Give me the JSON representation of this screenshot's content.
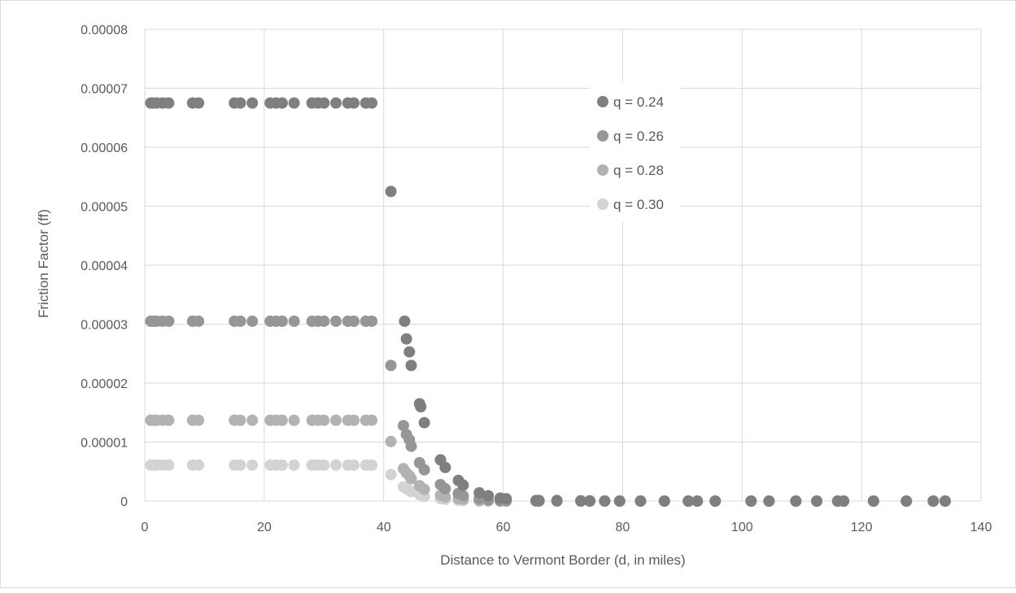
{
  "chart_data": {
    "type": "scatter",
    "xlabel": "Distance to Vermont Border (d, in miles)",
    "ylabel": "Friction Factor (ff)",
    "xlim": [
      0,
      140
    ],
    "ylim": [
      0,
      8e-05
    ],
    "x_ticks": [
      "0",
      "20",
      "40",
      "60",
      "80",
      "100",
      "120",
      "140"
    ],
    "y_ticks": [
      "0",
      "0.00001",
      "0.00002",
      "0.00003",
      "0.00004",
      "0.00005",
      "0.00006",
      "0.00007",
      "0.00008"
    ],
    "grid": true,
    "legend_position": "top-right",
    "series": [
      {
        "name": "q = 0.24",
        "color": "#7f7f7f",
        "points": [
          [
            1,
            6.75e-05
          ],
          [
            1.5,
            6.75e-05
          ],
          [
            2,
            6.75e-05
          ],
          [
            3,
            6.75e-05
          ],
          [
            4,
            6.75e-05
          ],
          [
            8,
            6.75e-05
          ],
          [
            9,
            6.75e-05
          ],
          [
            15,
            6.75e-05
          ],
          [
            16,
            6.75e-05
          ],
          [
            18,
            6.75e-05
          ],
          [
            21,
            6.75e-05
          ],
          [
            22,
            6.75e-05
          ],
          [
            23,
            6.75e-05
          ],
          [
            25,
            6.75e-05
          ],
          [
            28,
            6.75e-05
          ],
          [
            29,
            6.75e-05
          ],
          [
            30,
            6.75e-05
          ],
          [
            32,
            6.75e-05
          ],
          [
            34,
            6.75e-05
          ],
          [
            35,
            6.75e-05
          ],
          [
            37,
            6.75e-05
          ],
          [
            38,
            6.75e-05
          ],
          [
            41.2,
            5.25e-05
          ],
          [
            43.5,
            3.05e-05
          ],
          [
            43.8,
            2.75e-05
          ],
          [
            44.3,
            2.53e-05
          ],
          [
            44.6,
            2.3e-05
          ],
          [
            46,
            1.65e-05
          ],
          [
            46.2,
            1.6e-05
          ],
          [
            46.8,
            1.33e-05
          ],
          [
            49.5,
            7e-06
          ],
          [
            50.3,
            5.7e-06
          ],
          [
            52.5,
            3.5e-06
          ],
          [
            53.3,
            2.7e-06
          ],
          [
            56,
            1.4e-06
          ],
          [
            57.5,
            9e-07
          ],
          [
            59.5,
            5e-07
          ],
          [
            60.5,
            4e-07
          ],
          [
            65.5,
            1e-07
          ],
          [
            66,
            1e-07
          ],
          [
            69,
            1e-07
          ],
          [
            73,
            5e-08
          ],
          [
            74.5,
            3e-08
          ],
          [
            77,
            2e-08
          ],
          [
            79.5,
            1e-08
          ],
          [
            83,
            1e-08
          ],
          [
            87,
            0
          ],
          [
            91,
            0
          ],
          [
            92.5,
            0
          ],
          [
            95.5,
            0
          ],
          [
            101.5,
            0
          ],
          [
            104.5,
            0
          ],
          [
            109,
            0
          ],
          [
            112.5,
            0
          ],
          [
            116,
            0
          ],
          [
            117,
            0
          ],
          [
            122,
            0
          ],
          [
            127.5,
            0
          ],
          [
            132,
            0
          ],
          [
            134,
            0
          ]
        ]
      },
      {
        "name": "q = 0.26",
        "color": "#969696",
        "points": [
          [
            1,
            3.05e-05
          ],
          [
            1.5,
            3.05e-05
          ],
          [
            2,
            3.05e-05
          ],
          [
            3,
            3.05e-05
          ],
          [
            4,
            3.05e-05
          ],
          [
            8,
            3.05e-05
          ],
          [
            9,
            3.05e-05
          ],
          [
            15,
            3.05e-05
          ],
          [
            16,
            3.05e-05
          ],
          [
            18,
            3.05e-05
          ],
          [
            21,
            3.05e-05
          ],
          [
            22,
            3.05e-05
          ],
          [
            23,
            3.05e-05
          ],
          [
            25,
            3.05e-05
          ],
          [
            28,
            3.05e-05
          ],
          [
            29,
            3.05e-05
          ],
          [
            30,
            3.05e-05
          ],
          [
            32,
            3.05e-05
          ],
          [
            34,
            3.05e-05
          ],
          [
            35,
            3.05e-05
          ],
          [
            37,
            3.05e-05
          ],
          [
            38,
            3.05e-05
          ],
          [
            41.2,
            2.3e-05
          ],
          [
            43.3,
            1.28e-05
          ],
          [
            43.8,
            1.13e-05
          ],
          [
            44.3,
            1.04e-05
          ],
          [
            44.6,
            9.3e-06
          ],
          [
            46,
            6.5e-06
          ],
          [
            46.8,
            5.3e-06
          ],
          [
            49.5,
            2.8e-06
          ],
          [
            50.3,
            2.1e-06
          ],
          [
            52.5,
            1.3e-06
          ],
          [
            53.3,
            9e-07
          ],
          [
            56,
            4e-07
          ],
          [
            57.5,
            2e-07
          ],
          [
            59.5,
            1e-07
          ],
          [
            60.5,
            1e-07
          ],
          [
            65.5,
            0
          ],
          [
            66,
            0
          ],
          [
            69,
            0
          ],
          [
            73,
            0
          ],
          [
            74.5,
            0
          ],
          [
            77,
            0
          ],
          [
            79.5,
            0
          ],
          [
            83,
            0
          ],
          [
            87,
            0
          ],
          [
            91,
            0
          ],
          [
            92.5,
            0
          ],
          [
            95.5,
            0
          ],
          [
            101.5,
            0
          ],
          [
            104.5,
            0
          ],
          [
            109,
            0
          ],
          [
            112.5,
            0
          ],
          [
            116,
            0
          ],
          [
            117,
            0
          ],
          [
            122,
            0
          ],
          [
            127.5,
            0
          ],
          [
            132,
            0
          ],
          [
            134,
            0
          ]
        ]
      },
      {
        "name": "q = 0.28",
        "color": "#b2b2b2",
        "points": [
          [
            1,
            1.37e-05
          ],
          [
            1.5,
            1.37e-05
          ],
          [
            2,
            1.37e-05
          ],
          [
            3,
            1.37e-05
          ],
          [
            4,
            1.37e-05
          ],
          [
            8,
            1.37e-05
          ],
          [
            9,
            1.37e-05
          ],
          [
            15,
            1.37e-05
          ],
          [
            16,
            1.37e-05
          ],
          [
            18,
            1.37e-05
          ],
          [
            21,
            1.37e-05
          ],
          [
            22,
            1.37e-05
          ],
          [
            23,
            1.37e-05
          ],
          [
            25,
            1.37e-05
          ],
          [
            28,
            1.37e-05
          ],
          [
            29,
            1.37e-05
          ],
          [
            30,
            1.37e-05
          ],
          [
            32,
            1.37e-05
          ],
          [
            34,
            1.37e-05
          ],
          [
            35,
            1.37e-05
          ],
          [
            37,
            1.37e-05
          ],
          [
            38,
            1.37e-05
          ],
          [
            41.2,
            1.01e-05
          ],
          [
            43.3,
            5.5e-06
          ],
          [
            43.8,
            4.8e-06
          ],
          [
            44.3,
            4.3e-06
          ],
          [
            44.6,
            3.8e-06
          ],
          [
            46,
            2.6e-06
          ],
          [
            46.8,
            2e-06
          ],
          [
            49.5,
            1e-06
          ],
          [
            50.3,
            7e-07
          ],
          [
            52.5,
            4e-07
          ],
          [
            53.3,
            3e-07
          ],
          [
            56,
            1e-07
          ],
          [
            57.5,
            1e-07
          ],
          [
            59.5,
            0
          ],
          [
            60.5,
            0
          ]
        ]
      },
      {
        "name": "q = 0.30",
        "color": "#d3d3d3",
        "points": [
          [
            1,
            6.1e-06
          ],
          [
            1.5,
            6.1e-06
          ],
          [
            2,
            6.1e-06
          ],
          [
            3,
            6.1e-06
          ],
          [
            4,
            6.1e-06
          ],
          [
            8,
            6.1e-06
          ],
          [
            9,
            6.1e-06
          ],
          [
            15,
            6.1e-06
          ],
          [
            16,
            6.1e-06
          ],
          [
            18,
            6.1e-06
          ],
          [
            21,
            6.1e-06
          ],
          [
            22,
            6.1e-06
          ],
          [
            23,
            6.1e-06
          ],
          [
            25,
            6.1e-06
          ],
          [
            28,
            6.1e-06
          ],
          [
            29,
            6.1e-06
          ],
          [
            30,
            6.1e-06
          ],
          [
            32,
            6.1e-06
          ],
          [
            34,
            6.1e-06
          ],
          [
            35,
            6.1e-06
          ],
          [
            37,
            6.1e-06
          ],
          [
            38,
            6.1e-06
          ],
          [
            41.2,
            4.5e-06
          ],
          [
            43.3,
            2.4e-06
          ],
          [
            43.8,
            2.1e-06
          ],
          [
            44.3,
            1.8e-06
          ],
          [
            44.6,
            1.6e-06
          ],
          [
            46,
            1.1e-06
          ],
          [
            46.8,
            8e-07
          ],
          [
            49.5,
            4e-07
          ],
          [
            50.3,
            3e-07
          ],
          [
            52.5,
            1e-07
          ],
          [
            53.3,
            1e-07
          ],
          [
            56,
            0
          ],
          [
            57.5,
            0
          ],
          [
            59.5,
            0
          ],
          [
            60.5,
            0
          ]
        ]
      }
    ]
  }
}
